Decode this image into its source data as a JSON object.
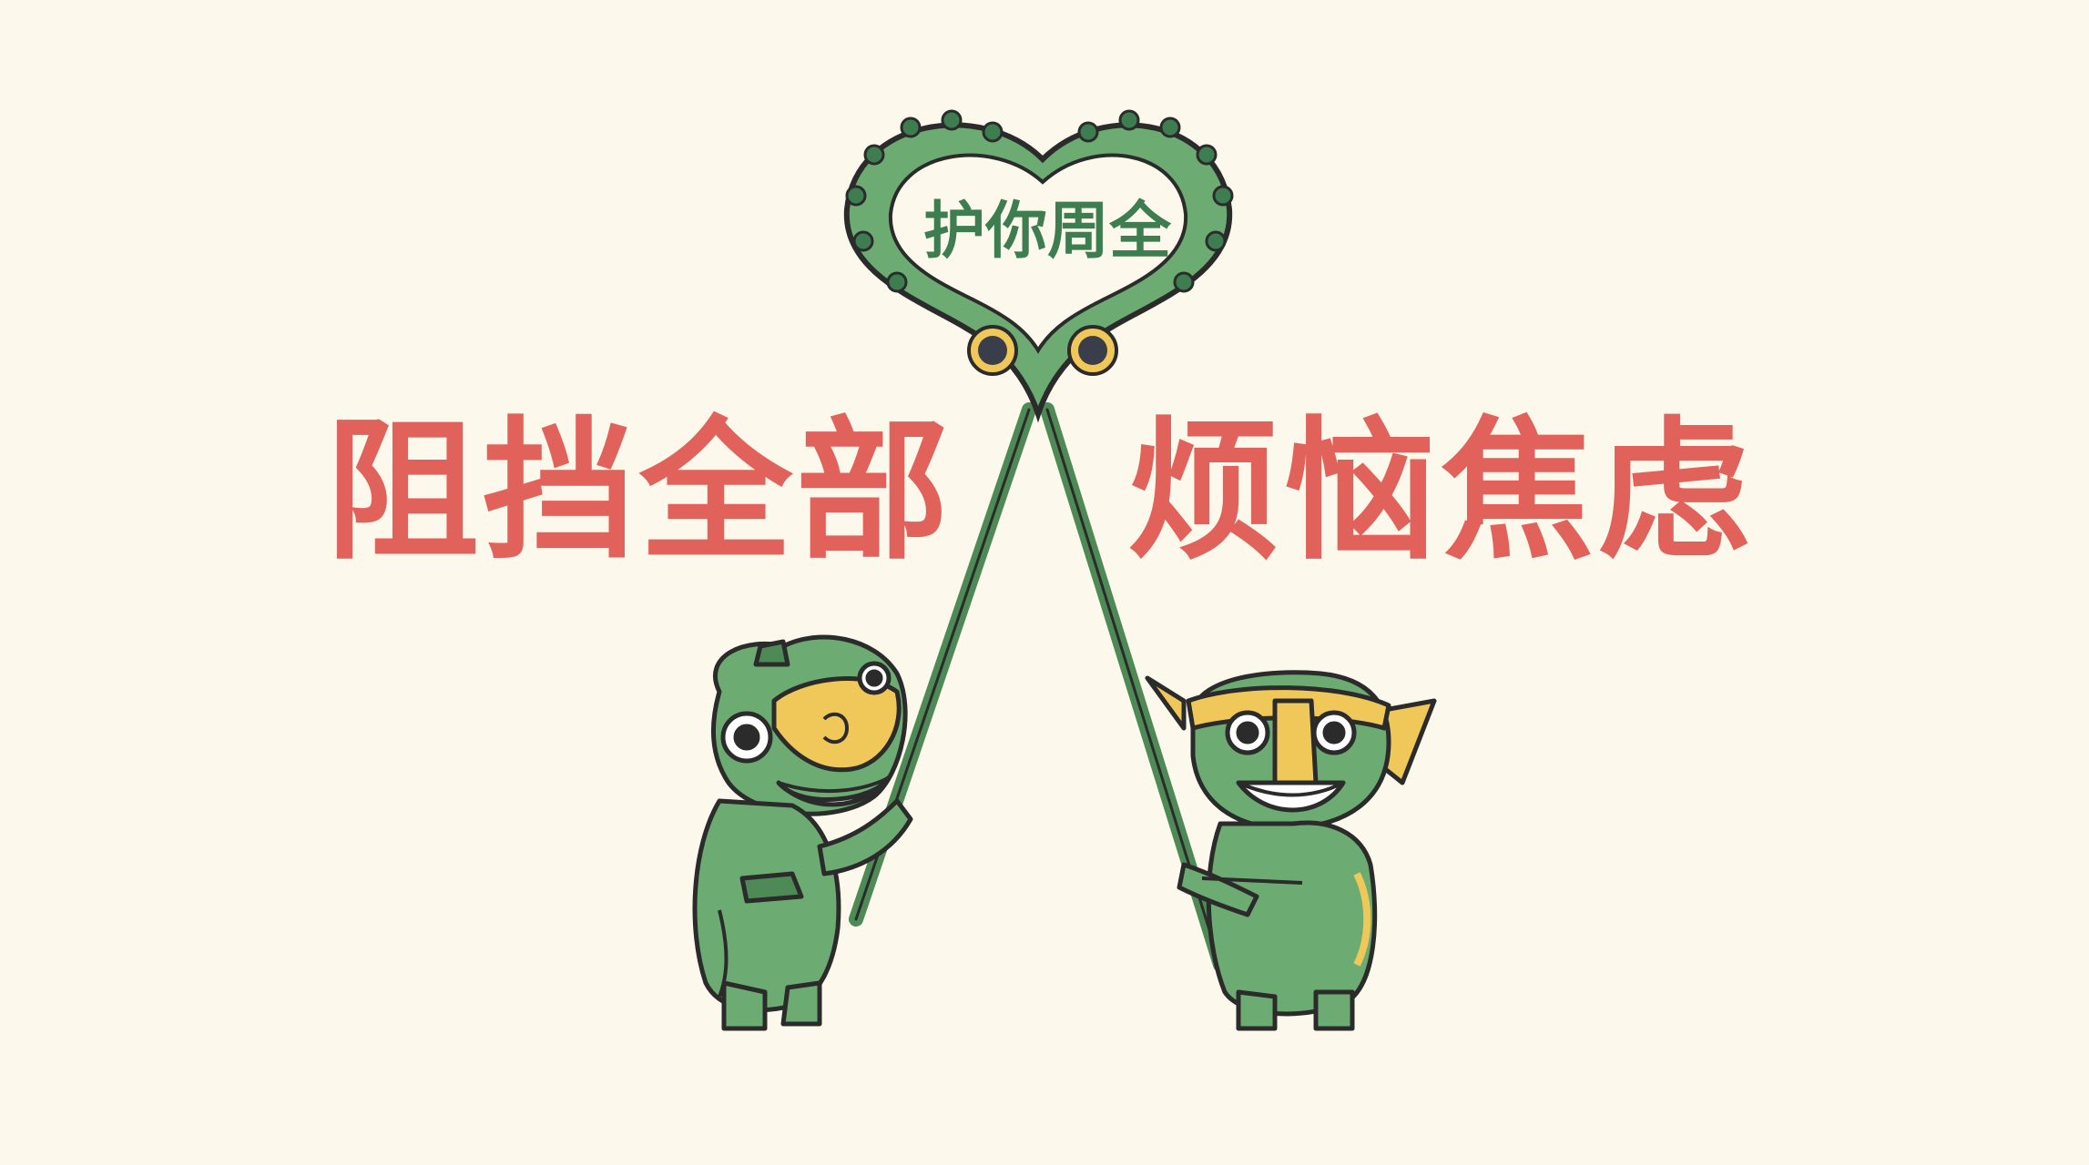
{
  "heart_label": "护你周全",
  "headline": {
    "left": "阻挡全部",
    "right": "烦恼焦虑"
  },
  "colors": {
    "background": "#fdf8ec",
    "headline": "#e0625a",
    "bronze_green": "#6cac72",
    "bronze_dark": "#3e7d4f",
    "mask_gold": "#f0c85a",
    "outline": "#2b2b2b"
  },
  "figures": [
    "bronze-figure-left",
    "bronze-figure-right"
  ]
}
